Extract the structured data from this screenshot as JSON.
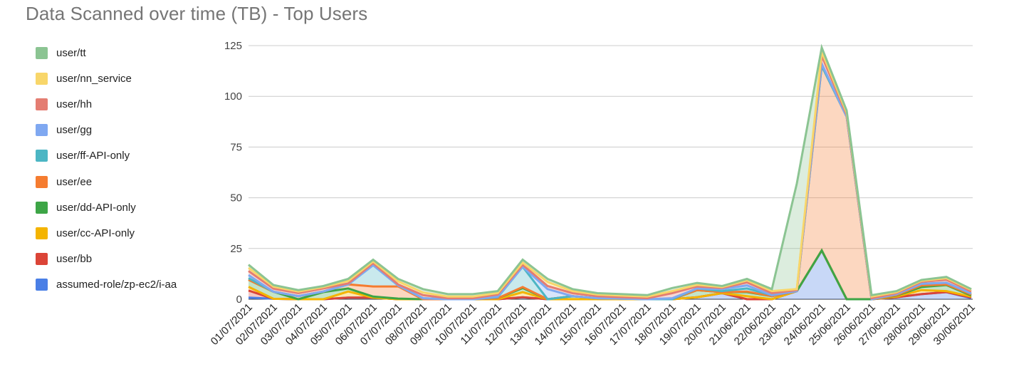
{
  "chart_data": {
    "type": "area",
    "stacked": true,
    "title": "Data Scanned over time (TB) - Top Users",
    "xlabel": "",
    "ylabel": "",
    "ylim": [
      0,
      125
    ],
    "yticks": [
      0,
      25,
      50,
      75,
      100,
      125
    ],
    "grid": true,
    "legend_position": "left",
    "categories": [
      "01/07/2021",
      "02/07/2021",
      "03/07/2021",
      "04/07/2021",
      "05/07/2021",
      "06/07/2021",
      "07/07/2021",
      "08/07/2021",
      "09/07/2021",
      "10/07/2021",
      "11/07/2021",
      "12/07/2021",
      "13/07/2021",
      "14/07/2021",
      "15/07/2021",
      "16/07/2021",
      "17/07/2021",
      "18/07/2021",
      "19/07/2021",
      "20/07/2021",
      "21/06/2021",
      "22/06/2021",
      "23/06/2021",
      "24/06/2021",
      "25/06/2021",
      "26/06/2021",
      "27/06/2021",
      "28/06/2021",
      "29/06/2021",
      "30/06/2021"
    ],
    "series": [
      {
        "name": "assumed-role/zp-ec2/i-aa",
        "color": "#4a7fe6",
        "values": [
          0.8,
          0.2,
          0,
          0,
          0.8,
          0.8,
          0,
          0,
          0,
          0,
          0,
          1.0,
          0,
          0,
          0,
          0,
          0,
          0,
          1.0,
          3.0,
          0,
          0,
          4.0,
          24.0,
          0,
          0,
          1.0,
          2.5,
          3.5,
          0.5
        ]
      },
      {
        "name": "user/bb",
        "color": "#db4437",
        "values": [
          3.5,
          0,
          0,
          0,
          0,
          0,
          0,
          0,
          0,
          0,
          0,
          0,
          0,
          0,
          0,
          0,
          0,
          0,
          0,
          0,
          0,
          0,
          0,
          0,
          0,
          0,
          0,
          0,
          0,
          0.3
        ]
      },
      {
        "name": "user/cc-API-only",
        "color": "#f4b400",
        "values": [
          1.8,
          0,
          0,
          0,
          3.0,
          0,
          0,
          0,
          0,
          0,
          0,
          2.5,
          0,
          0,
          0,
          0,
          0,
          0,
          0,
          0,
          1.5,
          0,
          0,
          0,
          0,
          0,
          0.3,
          2.0,
          0.5,
          0.5
        ]
      },
      {
        "name": "user/dd-API-only",
        "color": "#3da546",
        "values": [
          3.5,
          3.5,
          0,
          3.5,
          1.5,
          0.5,
          0.3,
          0,
          0,
          0,
          0.5,
          2.0,
          0,
          1.5,
          0.5,
          0.3,
          0,
          0,
          3.5,
          0.5,
          2.0,
          1.5,
          0,
          0,
          0,
          0,
          0.5,
          1.5,
          3.0,
          0.5
        ]
      },
      {
        "name": "user/ee",
        "color": "#f57c30",
        "values": [
          0,
          0,
          1.5,
          0.3,
          2.0,
          5.0,
          6.0,
          0,
          0,
          0,
          0,
          0.5,
          0,
          0,
          0,
          0,
          0,
          0,
          0,
          0,
          0.3,
          0,
          0,
          91.0,
          90.0,
          0,
          0.2,
          0.8,
          0.3,
          0.5
        ]
      },
      {
        "name": "user/ff-API-only",
        "color": "#4cb6c4",
        "values": [
          0.8,
          0,
          0,
          0,
          0,
          10.5,
          0.5,
          0.5,
          0,
          0,
          0.5,
          10.0,
          0,
          0,
          0,
          0,
          0,
          0,
          0.8,
          0.5,
          1.5,
          0.5,
          0,
          0,
          0,
          0,
          0.5,
          0.8,
          0.8,
          0.5
        ]
      },
      {
        "name": "user/gg",
        "color": "#7fa8f1",
        "values": [
          1.5,
          0,
          0,
          0,
          0,
          0,
          0,
          0,
          0,
          0,
          0.3,
          0,
          5.0,
          0,
          0,
          0,
          0,
          0.5,
          0,
          1.0,
          1.5,
          0,
          0,
          1.0,
          0,
          0,
          0,
          0,
          0,
          0
        ]
      },
      {
        "name": "user/hh",
        "color": "#e47d72",
        "values": [
          2.0,
          1.5,
          1.5,
          1.5,
          0.5,
          1.0,
          0.5,
          1.5,
          0.5,
          0.5,
          1.0,
          1.0,
          1.5,
          1.5,
          1.0,
          0.7,
          0.5,
          2.5,
          1.0,
          0.5,
          1.5,
          1.0,
          0.5,
          4.0,
          1.0,
          0.5,
          0.5,
          1.0,
          1.5,
          1.0
        ]
      },
      {
        "name": "user/nn_service",
        "color": "#f8d66a",
        "values": [
          1.5,
          1.0,
          0.8,
          0.7,
          1.2,
          0.8,
          1.5,
          1.3,
          0.8,
          0.8,
          0.8,
          1.0,
          2.0,
          1.0,
          0.8,
          0.8,
          0.8,
          1.0,
          0.8,
          0.5,
          1.0,
          1.0,
          0.5,
          2.0,
          1.0,
          0.8,
          0.5,
          0.5,
          0.8,
          0.8
        ]
      },
      {
        "name": "user/tt",
        "color": "#8bc492",
        "values": [
          1.6,
          0.8,
          0.7,
          0.5,
          1.0,
          0.9,
          1.2,
          1.7,
          1.2,
          1.2,
          0.9,
          1.5,
          1.5,
          1.0,
          0.7,
          0.7,
          0.7,
          1.5,
          0.9,
          0.5,
          0.7,
          1.0,
          52.0,
          2.0,
          1.0,
          0.7,
          0.5,
          0.4,
          0.6,
          0.4
        ]
      }
    ]
  },
  "legend": {
    "items": [
      {
        "label": "user/tt",
        "color": "#8bc492"
      },
      {
        "label": "user/nn_service",
        "color": "#f8d66a"
      },
      {
        "label": "user/hh",
        "color": "#e47d72"
      },
      {
        "label": "user/gg",
        "color": "#7fa8f1"
      },
      {
        "label": "user/ff-API-only",
        "color": "#4cb6c4"
      },
      {
        "label": "user/ee",
        "color": "#f57c30"
      },
      {
        "label": "user/dd-API-only",
        "color": "#3da546"
      },
      {
        "label": "user/cc-API-only",
        "color": "#f4b400"
      },
      {
        "label": "user/bb",
        "color": "#db4437"
      },
      {
        "label": "assumed-role/zp-ec2/i-aa",
        "color": "#4a7fe6"
      }
    ]
  }
}
